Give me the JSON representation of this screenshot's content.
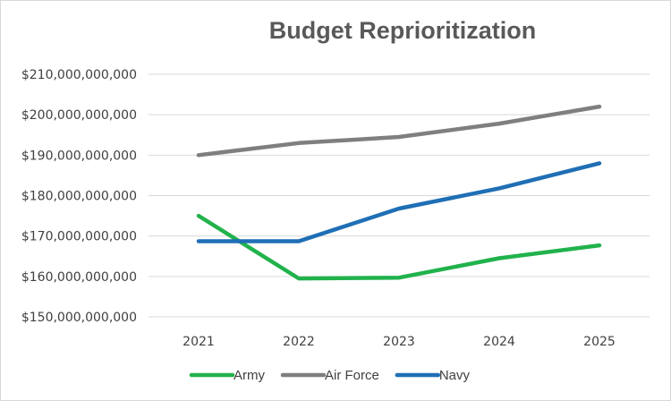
{
  "chart_data": {
    "type": "line",
    "title": "Budget Reprioritization",
    "xlabel": "",
    "ylabel": "",
    "categories": [
      "2021",
      "2022",
      "2023",
      "2024",
      "2025"
    ],
    "ylim": [
      150000000000,
      210000000000
    ],
    "yticks": [
      150000000000,
      160000000000,
      170000000000,
      180000000000,
      190000000000,
      200000000000,
      210000000000
    ],
    "ytick_labels": [
      "$150,000,000,000",
      "$160,000,000,000",
      "$170,000,000,000",
      "$180,000,000,000",
      "$190,000,000,000",
      "$200,000,000,000",
      "$210,000,000,000"
    ],
    "grid": true,
    "legend_position": "bottom",
    "series": [
      {
        "name": "Army",
        "color": "#21b24c",
        "values": [
          175000000000,
          159500000000,
          159700000000,
          164500000000,
          167700000000
        ]
      },
      {
        "name": "Air Force",
        "color": "#7f7f7f",
        "values": [
          190000000000,
          193000000000,
          194500000000,
          197800000000,
          202000000000
        ]
      },
      {
        "name": "Navy",
        "color": "#1f6fb5",
        "values": [
          168700000000,
          168700000000,
          176800000000,
          181800000000,
          188000000000
        ]
      }
    ]
  }
}
